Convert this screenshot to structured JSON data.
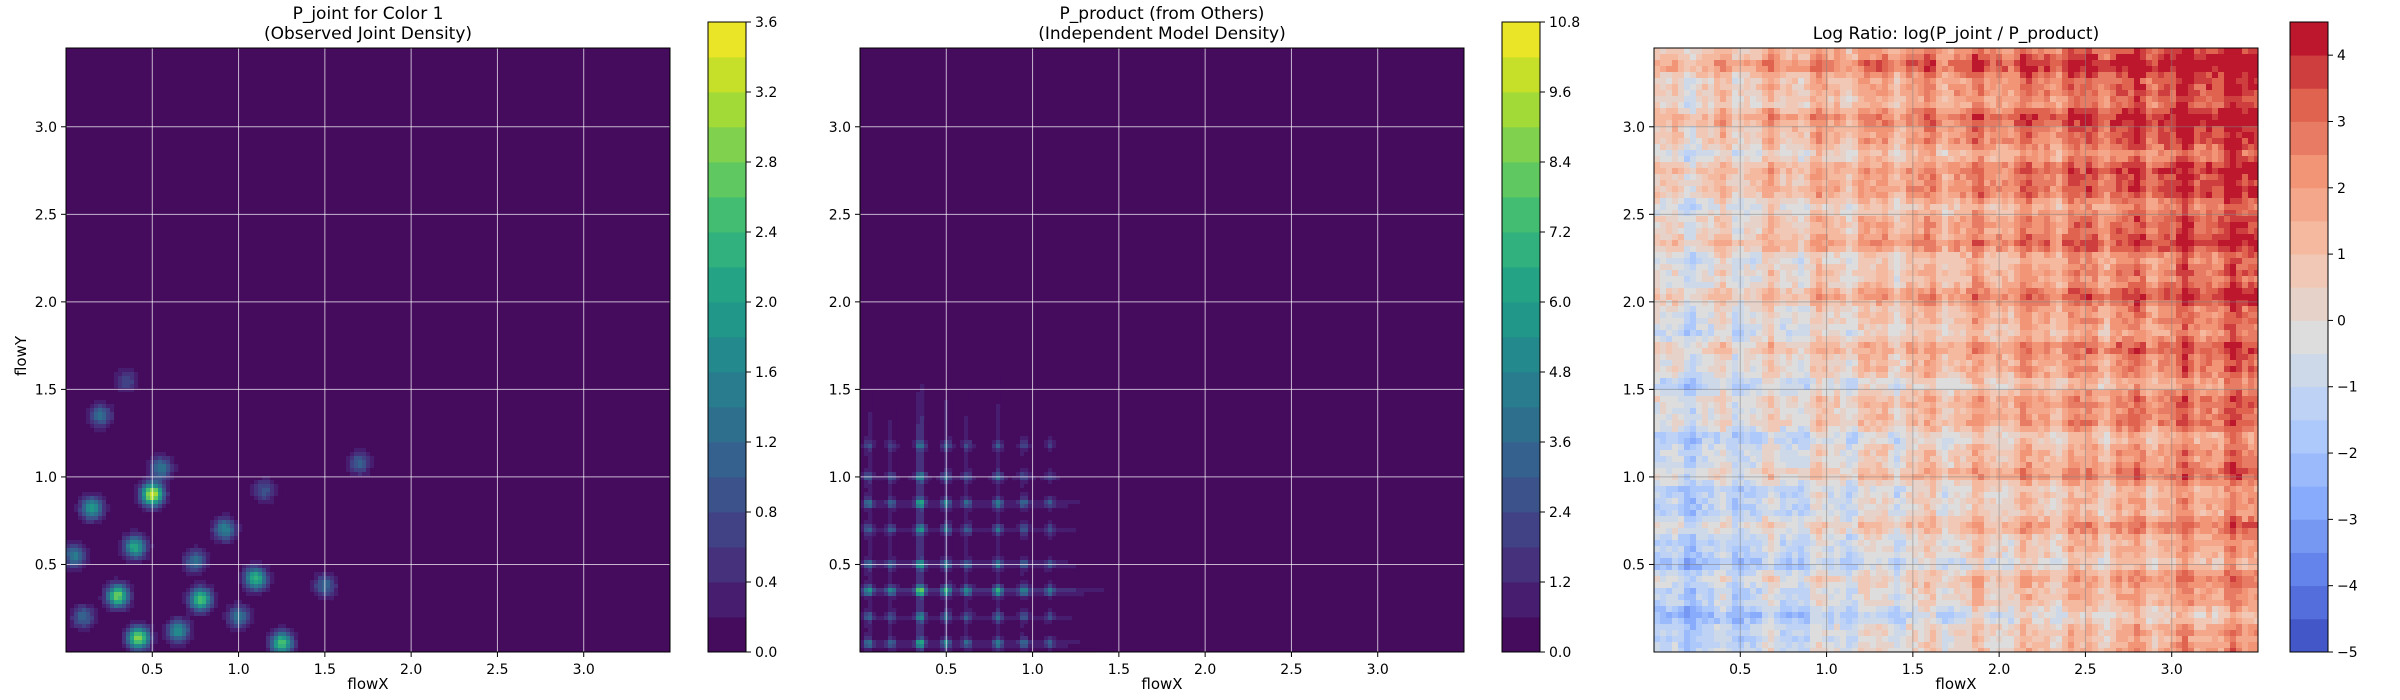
{
  "chart_data": [
    {
      "type": "heatmap",
      "title_lines": [
        "P_joint for Color 1",
        "(Observed Joint Density)"
      ],
      "xlabel": "flowX",
      "ylabel": "flowY",
      "xlim": [
        0,
        3.5
      ],
      "ylim": [
        0,
        3.45
      ],
      "xticks": [
        "0.5",
        "1.0",
        "1.5",
        "2.0",
        "2.5",
        "3.0"
      ],
      "xtick_values": [
        0.5,
        1.0,
        1.5,
        2.0,
        2.5,
        3.0
      ],
      "yticks": [
        "0.5",
        "1.0",
        "1.5",
        "2.0",
        "2.5",
        "3.0"
      ],
      "ytick_values": [
        0.5,
        1.0,
        1.5,
        2.0,
        2.5,
        3.0
      ],
      "grid": true,
      "colormap": "viridis",
      "colorbar": {
        "min": 0.0,
        "max": 3.6,
        "levels": 18,
        "ticks": [
          "0.0",
          "0.4",
          "0.8",
          "1.2",
          "1.6",
          "2.0",
          "2.4",
          "2.8",
          "3.2",
          "3.6"
        ],
        "tick_values": [
          0.0,
          0.4,
          0.8,
          1.2,
          1.6,
          2.0,
          2.4,
          2.8,
          3.2,
          3.6
        ]
      },
      "blobs": [
        {
          "x": 0.5,
          "y": 0.9,
          "value": 3.4
        },
        {
          "x": 0.42,
          "y": 0.08,
          "value": 3.0
        },
        {
          "x": 0.3,
          "y": 0.32,
          "value": 2.8
        },
        {
          "x": 0.78,
          "y": 0.3,
          "value": 2.6
        },
        {
          "x": 1.1,
          "y": 0.42,
          "value": 2.4
        },
        {
          "x": 1.25,
          "y": 0.05,
          "value": 2.6
        },
        {
          "x": 0.4,
          "y": 0.6,
          "value": 2.2
        },
        {
          "x": 0.15,
          "y": 0.82,
          "value": 2.0
        },
        {
          "x": 0.65,
          "y": 0.12,
          "value": 1.8
        },
        {
          "x": 0.92,
          "y": 0.7,
          "value": 1.6
        },
        {
          "x": 0.55,
          "y": 1.05,
          "value": 1.4
        },
        {
          "x": 0.2,
          "y": 1.35,
          "value": 1.3
        },
        {
          "x": 0.05,
          "y": 0.55,
          "value": 1.5
        },
        {
          "x": 1.5,
          "y": 0.38,
          "value": 1.2
        },
        {
          "x": 1.7,
          "y": 1.08,
          "value": 1.1
        },
        {
          "x": 0.75,
          "y": 0.52,
          "value": 1.3
        },
        {
          "x": 1.0,
          "y": 0.2,
          "value": 1.4
        },
        {
          "x": 0.1,
          "y": 0.2,
          "value": 1.2
        },
        {
          "x": 1.15,
          "y": 0.92,
          "value": 0.9
        },
        {
          "x": 0.35,
          "y": 1.55,
          "value": 0.8
        }
      ]
    },
    {
      "type": "heatmap",
      "title_lines": [
        "P_product (from Others)",
        "(Independent Model Density)"
      ],
      "xlabel": "flowX",
      "ylabel": "",
      "xlim": [
        0,
        3.5
      ],
      "ylim": [
        0,
        3.45
      ],
      "xticks": [
        "0.5",
        "1.0",
        "1.5",
        "2.0",
        "2.5",
        "3.0"
      ],
      "xtick_values": [
        0.5,
        1.0,
        1.5,
        2.0,
        2.5,
        3.0
      ],
      "yticks": [
        "0.5",
        "1.0",
        "1.5",
        "2.0",
        "2.5",
        "3.0"
      ],
      "ytick_values": [
        0.5,
        1.0,
        1.5,
        2.0,
        2.5,
        3.0
      ],
      "grid": true,
      "colormap": "viridis",
      "colorbar": {
        "min": 0.0,
        "max": 10.8,
        "levels": 18,
        "ticks": [
          "0.0",
          "1.2",
          "2.4",
          "3.6",
          "4.8",
          "6.0",
          "7.2",
          "8.4",
          "9.6",
          "10.8"
        ],
        "tick_values": [
          0.0,
          1.2,
          2.4,
          3.6,
          4.8,
          6.0,
          7.2,
          8.4,
          9.6,
          10.8
        ]
      },
      "grid_lines_x": [
        {
          "x": 0.05,
          "value": 2.4
        },
        {
          "x": 0.18,
          "value": 2.0
        },
        {
          "x": 0.35,
          "value": 4.8
        },
        {
          "x": 0.5,
          "value": 3.0
        },
        {
          "x": 0.62,
          "value": 2.2
        },
        {
          "x": 0.8,
          "value": 2.8
        },
        {
          "x": 0.95,
          "value": 2.0
        },
        {
          "x": 1.1,
          "value": 1.6
        }
      ],
      "grid_lines_y": [
        {
          "y": 0.05,
          "value": 2.6
        },
        {
          "y": 0.2,
          "value": 2.0
        },
        {
          "y": 0.35,
          "value": 4.2
        },
        {
          "y": 0.5,
          "value": 2.4
        },
        {
          "y": 0.7,
          "value": 2.2
        },
        {
          "y": 0.85,
          "value": 2.6
        },
        {
          "y": 1.0,
          "value": 1.8
        },
        {
          "y": 1.18,
          "value": 1.4
        }
      ]
    },
    {
      "type": "heatmap",
      "title": "Log Ratio: log(P_joint / P_product)",
      "xlabel": "flowX",
      "ylabel": "",
      "xlim": [
        0,
        3.5
      ],
      "ylim": [
        0,
        3.45
      ],
      "xticks": [
        "0.5",
        "1.0",
        "1.5",
        "2.0",
        "2.5",
        "3.0"
      ],
      "xtick_values": [
        0.5,
        1.0,
        1.5,
        2.0,
        2.5,
        3.0
      ],
      "yticks": [
        "0.5",
        "1.0",
        "1.5",
        "2.0",
        "2.5",
        "3.0"
      ],
      "ytick_values": [
        0.5,
        1.0,
        1.5,
        2.0,
        2.5,
        3.0
      ],
      "grid": true,
      "colormap": "coolwarm",
      "colorbar": {
        "min": -5,
        "max": 4.5,
        "levels": 19,
        "ticks": [
          "−5",
          "−4",
          "−3",
          "−2",
          "−1",
          "0",
          "1",
          "2",
          "3",
          "4"
        ],
        "tick_values": [
          -5,
          -4,
          -3,
          -2,
          -1,
          0,
          1,
          2,
          3,
          4
        ]
      }
    }
  ]
}
